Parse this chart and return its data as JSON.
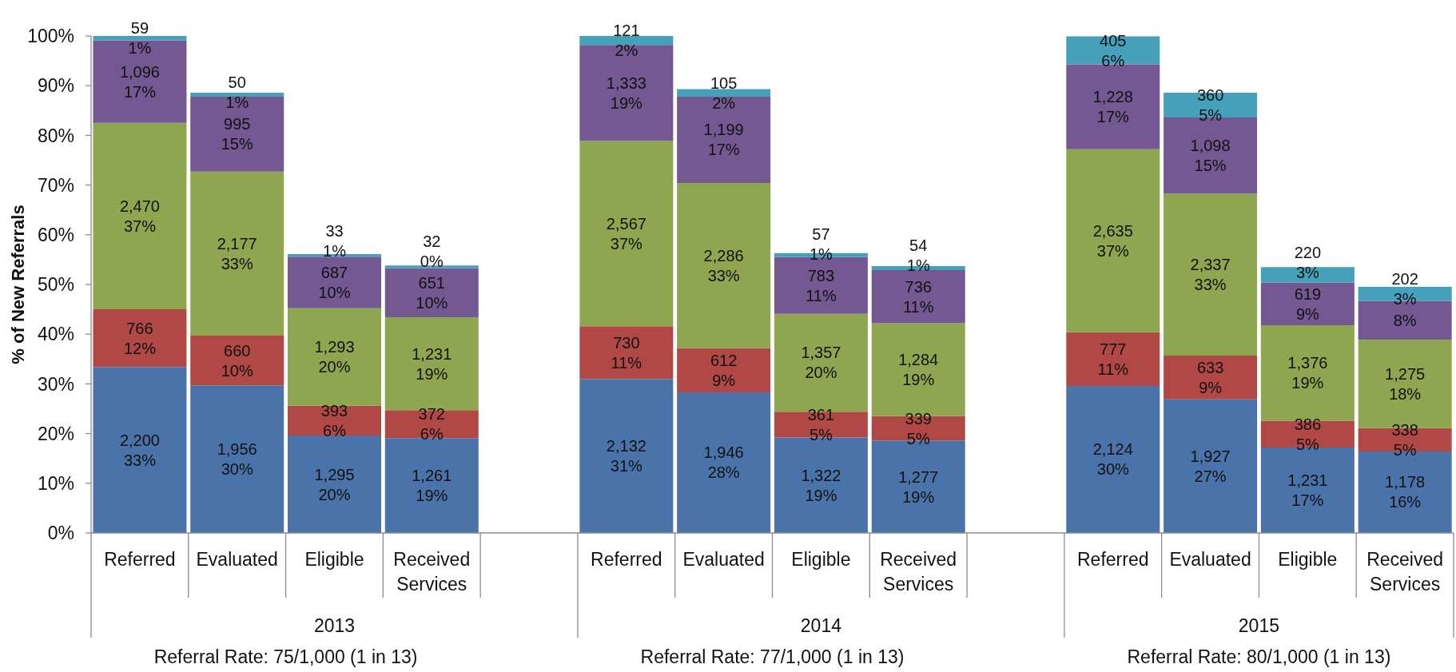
{
  "chart_data": {
    "type": "bar",
    "stacked": true,
    "ylabel": "% of New Referrals",
    "categories": [
      "Referred",
      "Evaluated",
      "Eligible",
      "Received Services",
      null,
      "Referred",
      "Evaluated",
      "Eligible",
      "Received Services",
      null,
      "Referred",
      "Evaluated",
      "Eligible",
      "Received Services"
    ],
    "series": [
      {
        "color": "#4a74a9",
        "values": [
          33.4,
          29.7,
          19.6,
          19.1,
          null,
          31.0,
          28.3,
          19.2,
          18.6,
          null,
          29.6,
          26.9,
          17.2,
          16.4
        ],
        "value_labels": [
          "2,200\n33%",
          "1,956\n30%",
          "1,295\n20%",
          "1,261\n19%",
          null,
          "2,132\n31%",
          "1,946\n28%",
          "1,322\n19%",
          "1,277\n19%",
          null,
          "2,124\n30%",
          "1,927\n27%",
          "1,231\n17%",
          "1,178\n16%"
        ]
      },
      {
        "color": "#b04846",
        "values": [
          11.6,
          10.0,
          6.0,
          5.6,
          null,
          10.6,
          8.9,
          5.2,
          4.9,
          null,
          10.8,
          8.8,
          5.4,
          4.7
        ],
        "value_labels": [
          "766\n12%",
          "660\n10%",
          "393\n6%",
          "372\n6%",
          null,
          "730\n11%",
          "612\n9%",
          "361\n5%",
          "339\n5%",
          null,
          "777\n11%",
          "633\n9%",
          "386\n5%",
          "338\n5%"
        ]
      },
      {
        "color": "#8ea64f",
        "values": [
          37.5,
          33.0,
          19.6,
          18.7,
          null,
          37.3,
          33.2,
          19.7,
          18.7,
          null,
          36.8,
          32.6,
          19.2,
          17.8
        ],
        "value_labels": [
          "2,470\n37%",
          "2,177\n33%",
          "1,293\n20%",
          "1,231\n19%",
          null,
          "2,567\n37%",
          "2,286\n33%",
          "1,357\n20%",
          "1,284\n19%",
          null,
          "2,635\n37%",
          "2,337\n33%",
          "1,376\n19%",
          "1,275\n18%"
        ]
      },
      {
        "color": "#735892",
        "values": [
          16.6,
          15.1,
          10.4,
          9.9,
          null,
          19.3,
          17.4,
          11.4,
          10.7,
          null,
          17.1,
          15.3,
          8.6,
          7.8
        ],
        "value_labels": [
          "1,096\n17%",
          "995\n15%",
          "687\n10%",
          "651\n10%",
          null,
          "1,333\n19%",
          "1,199\n17%",
          "783\n11%",
          "736\n11%",
          null,
          "1,228\n17%",
          "1,098\n15%",
          "619\n9%",
          "8%"
        ]
      },
      {
        "color": "#45a0ba",
        "values": [
          0.9,
          0.8,
          0.5,
          0.5,
          null,
          1.8,
          1.5,
          0.8,
          0.8,
          null,
          5.6,
          5.0,
          3.1,
          2.8
        ],
        "value_labels": [
          "59\n1%",
          "50\n1%",
          "33\n1%",
          "32\n0%",
          null,
          "121\n2%",
          "105\n2%",
          "57\n1%",
          "54\n1%",
          null,
          "405\n6%",
          "360\n5%",
          "220\n3%",
          "202\n3%"
        ]
      }
    ],
    "ylim": [
      0,
      100
    ],
    "yticks": [
      {
        "value": 0,
        "label": "0%"
      },
      {
        "value": 10,
        "label": "10%"
      },
      {
        "value": 20,
        "label": "20%"
      },
      {
        "value": 30,
        "label": "30%"
      },
      {
        "value": 40,
        "label": "40%"
      },
      {
        "value": 50,
        "label": "50%"
      },
      {
        "value": 60,
        "label": "60%"
      },
      {
        "value": 70,
        "label": "70%"
      },
      {
        "value": 80,
        "label": "80%"
      },
      {
        "value": 90,
        "label": "90%"
      },
      {
        "value": 100,
        "label": "100%"
      }
    ],
    "annotations": [
      "2013",
      "Referral Rate: 75/1,000 (1 in 13)",
      "2014",
      "Referral Rate: 77/1,000 (1 in 13)",
      "2015",
      "Referral Rate: 80/1,000 (1 in 13)"
    ]
  }
}
